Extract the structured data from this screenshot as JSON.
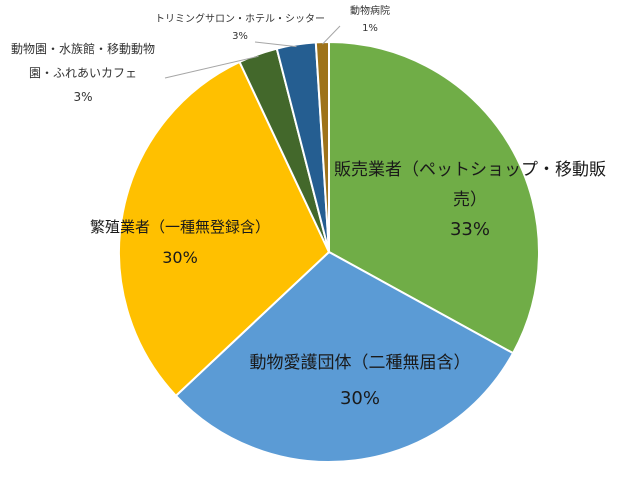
{
  "chart_data": {
    "type": "pie",
    "title": "",
    "slices": [
      {
        "label_lines": [
          "販売業者（ペットショップ・移動販",
          "売）"
        ],
        "value": 33,
        "value_label": "33%",
        "color": "#70ad47"
      },
      {
        "label_lines": [
          "動物愛護団体（二種無届含）"
        ],
        "value": 30,
        "value_label": "30%",
        "color": "#5b9bd5"
      },
      {
        "label_lines": [
          "繁殖業者（一種無登録含）"
        ],
        "value": 30,
        "value_label": "30%",
        "color": "#ffc000"
      },
      {
        "label_lines": [
          "動物園・水族館・移動動物",
          "園・ふれあいカフェ"
        ],
        "value": 3,
        "value_label": "3%",
        "color": "#43682b"
      },
      {
        "label_lines": [
          "トリミングサロン・ホテル・シッター"
        ],
        "value": 3,
        "value_label": "3%",
        "color": "#255e91"
      },
      {
        "label_lines": [
          "動物病院"
        ],
        "value": 1,
        "value_label": "1%",
        "color": "#9e7219"
      }
    ]
  }
}
